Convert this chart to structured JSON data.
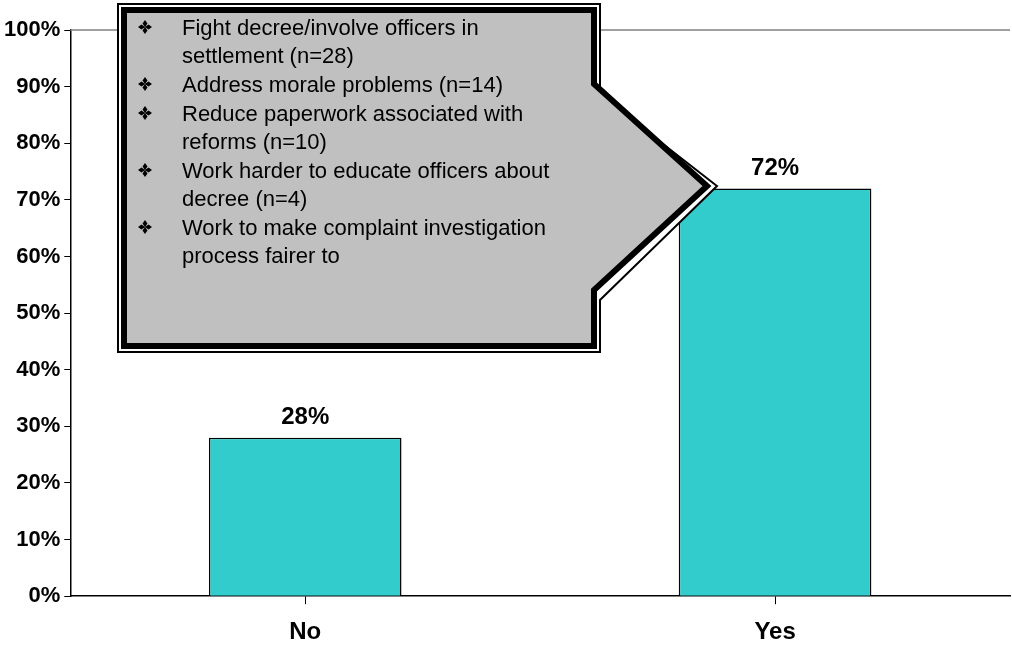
{
  "chart_data": {
    "type": "bar",
    "categories": [
      "No",
      "Yes"
    ],
    "values": [
      28,
      72
    ],
    "value_labels": [
      "28%",
      "72%"
    ],
    "color": "#33cccc",
    "ylim": [
      0,
      100
    ],
    "yticks": [
      {
        "value": 0,
        "label": "0%"
      },
      {
        "value": 10,
        "label": "10%"
      },
      {
        "value": 20,
        "label": "20%"
      },
      {
        "value": 30,
        "label": "30%"
      },
      {
        "value": 40,
        "label": "40%"
      },
      {
        "value": 50,
        "label": "50%"
      },
      {
        "value": 60,
        "label": "60%"
      },
      {
        "value": 70,
        "label": "70%"
      },
      {
        "value": 80,
        "label": "80%"
      },
      {
        "value": 90,
        "label": "90%"
      },
      {
        "value": 100,
        "label": "100%"
      }
    ],
    "grid": false,
    "legend": false,
    "ref_lines": [
      {
        "axis": "y",
        "value": 100,
        "color": "#808080"
      }
    ],
    "annotations": [
      "Fight decree/involve officers in settlement (n=28)",
      "Address morale problems (n=14)",
      "Reduce paperwork associated with reforms (n=10)",
      "Work harder to educate officers about decree (n=4)",
      "Work to make complaint investigation process fairer to"
    ]
  }
}
